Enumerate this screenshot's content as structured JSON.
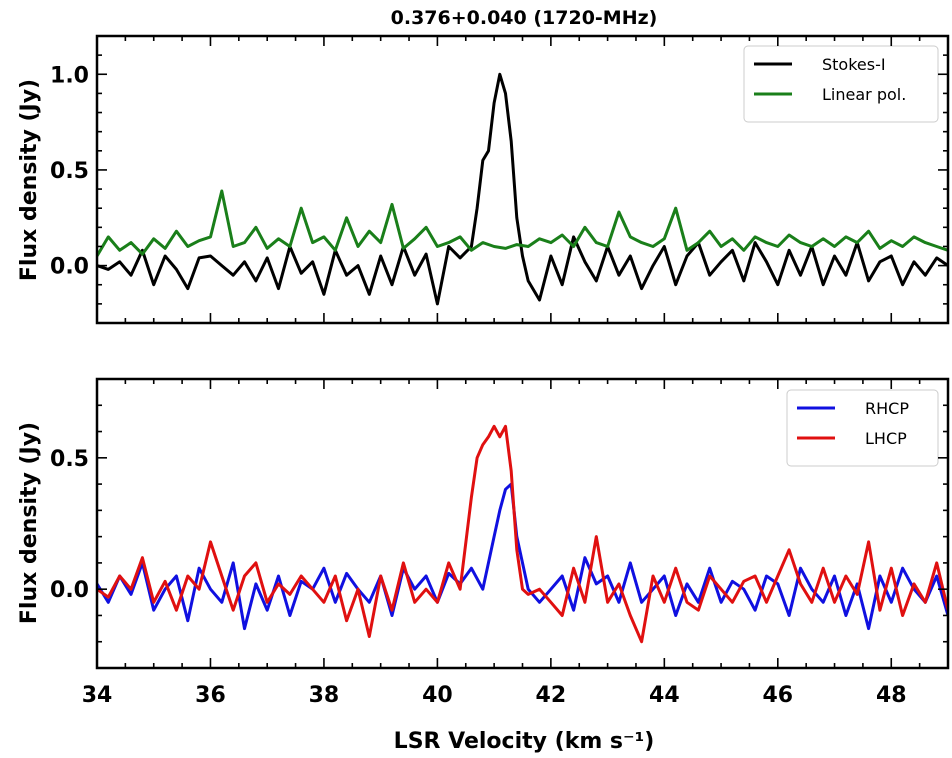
{
  "chart_data": [
    {
      "type": "line",
      "title": "0.376+0.040 (1720-MHz)",
      "xlabel": "",
      "ylabel": "Flux density (Jy)",
      "xlim": [
        34,
        49
      ],
      "ylim": [
        -0.3,
        1.2
      ],
      "yticks": [
        0.0,
        0.5,
        1.0
      ],
      "ytick_labels": [
        "0.0",
        "0.5",
        "1.0"
      ],
      "legend_position": "top-right",
      "series": [
        {
          "name": "Stokes-I",
          "color": "#000000",
          "x": [
            34.0,
            34.2,
            34.4,
            34.6,
            34.8,
            35.0,
            35.2,
            35.4,
            35.6,
            35.8,
            36.0,
            36.2,
            36.4,
            36.6,
            36.8,
            37.0,
            37.2,
            37.4,
            37.6,
            37.8,
            38.0,
            38.2,
            38.4,
            38.6,
            38.8,
            39.0,
            39.2,
            39.4,
            39.6,
            39.8,
            40.0,
            40.2,
            40.4,
            40.6,
            40.7,
            40.8,
            40.9,
            41.0,
            41.1,
            41.2,
            41.3,
            41.4,
            41.5,
            41.6,
            41.8,
            42.0,
            42.2,
            42.4,
            42.6,
            42.8,
            43.0,
            43.2,
            43.4,
            43.6,
            43.8,
            44.0,
            44.2,
            44.4,
            44.6,
            44.8,
            45.0,
            45.2,
            45.4,
            45.6,
            45.8,
            46.0,
            46.2,
            46.4,
            46.6,
            46.8,
            47.0,
            47.2,
            47.4,
            47.6,
            47.8,
            48.0,
            48.2,
            48.4,
            48.6,
            48.8,
            49.0
          ],
          "y": [
            0.0,
            -0.02,
            0.02,
            -0.05,
            0.08,
            -0.1,
            0.05,
            -0.02,
            -0.12,
            0.04,
            0.05,
            0.0,
            -0.05,
            0.02,
            -0.08,
            0.04,
            -0.12,
            0.1,
            -0.04,
            0.02,
            -0.15,
            0.08,
            -0.05,
            0.0,
            -0.15,
            0.05,
            -0.1,
            0.1,
            -0.05,
            0.06,
            -0.2,
            0.1,
            0.04,
            0.1,
            0.3,
            0.55,
            0.6,
            0.85,
            1.0,
            0.9,
            0.65,
            0.25,
            0.05,
            -0.08,
            -0.18,
            0.05,
            -0.1,
            0.15,
            0.02,
            -0.08,
            0.1,
            -0.05,
            0.05,
            -0.12,
            0.0,
            0.1,
            -0.1,
            0.05,
            0.12,
            -0.05,
            0.02,
            0.08,
            -0.08,
            0.12,
            0.02,
            -0.1,
            0.08,
            -0.05,
            0.1,
            -0.1,
            0.05,
            -0.05,
            0.12,
            -0.08,
            0.02,
            0.05,
            -0.1,
            0.02,
            -0.05,
            0.04,
            0.0
          ]
        },
        {
          "name": "Linear pol.",
          "color": "#1a7f1a",
          "x": [
            34.0,
            34.2,
            34.4,
            34.6,
            34.8,
            35.0,
            35.2,
            35.4,
            35.6,
            35.8,
            36.0,
            36.2,
            36.4,
            36.6,
            36.8,
            37.0,
            37.2,
            37.4,
            37.6,
            37.8,
            38.0,
            38.2,
            38.4,
            38.6,
            38.8,
            39.0,
            39.2,
            39.4,
            39.6,
            39.8,
            40.0,
            40.2,
            40.4,
            40.6,
            40.8,
            41.0,
            41.2,
            41.4,
            41.6,
            41.8,
            42.0,
            42.2,
            42.4,
            42.6,
            42.8,
            43.0,
            43.2,
            43.4,
            43.6,
            43.8,
            44.0,
            44.2,
            44.4,
            44.6,
            44.8,
            45.0,
            45.2,
            45.4,
            45.6,
            45.8,
            46.0,
            46.2,
            46.4,
            46.6,
            46.8,
            47.0,
            47.2,
            47.4,
            47.6,
            47.8,
            48.0,
            48.2,
            48.4,
            48.6,
            48.8,
            49.0
          ],
          "y": [
            0.05,
            0.15,
            0.08,
            0.12,
            0.06,
            0.14,
            0.09,
            0.18,
            0.1,
            0.13,
            0.15,
            0.39,
            0.1,
            0.12,
            0.2,
            0.09,
            0.14,
            0.1,
            0.3,
            0.12,
            0.15,
            0.08,
            0.25,
            0.1,
            0.18,
            0.12,
            0.32,
            0.09,
            0.14,
            0.2,
            0.1,
            0.12,
            0.15,
            0.08,
            0.12,
            0.1,
            0.09,
            0.11,
            0.1,
            0.14,
            0.12,
            0.16,
            0.1,
            0.2,
            0.12,
            0.1,
            0.28,
            0.15,
            0.12,
            0.1,
            0.14,
            0.3,
            0.08,
            0.12,
            0.18,
            0.1,
            0.14,
            0.08,
            0.15,
            0.12,
            0.1,
            0.16,
            0.12,
            0.1,
            0.14,
            0.1,
            0.15,
            0.12,
            0.18,
            0.09,
            0.13,
            0.1,
            0.15,
            0.12,
            0.1,
            0.08
          ]
        }
      ]
    },
    {
      "type": "line",
      "title": "",
      "xlabel": "LSR Velocity (km s⁻¹)",
      "ylabel": "Flux density (Jy)",
      "xlim": [
        34,
        49
      ],
      "ylim": [
        -0.3,
        0.8
      ],
      "xticks": [
        34,
        36,
        38,
        40,
        42,
        44,
        46,
        48
      ],
      "xtick_labels": [
        "34",
        "36",
        "38",
        "40",
        "42",
        "44",
        "46",
        "48"
      ],
      "yticks": [
        0.0,
        0.5
      ],
      "ytick_labels": [
        "0.0",
        "0.5"
      ],
      "legend_position": "top-right",
      "series": [
        {
          "name": "RHCP",
          "color": "#1010e0",
          "x": [
            34.0,
            34.2,
            34.4,
            34.6,
            34.8,
            35.0,
            35.2,
            35.4,
            35.6,
            35.8,
            36.0,
            36.2,
            36.4,
            36.6,
            36.8,
            37.0,
            37.2,
            37.4,
            37.6,
            37.8,
            38.0,
            38.2,
            38.4,
            38.6,
            38.8,
            39.0,
            39.2,
            39.4,
            39.6,
            39.8,
            40.0,
            40.2,
            40.4,
            40.6,
            40.8,
            41.0,
            41.1,
            41.2,
            41.3,
            41.4,
            41.6,
            41.8,
            42.0,
            42.2,
            42.4,
            42.6,
            42.8,
            43.0,
            43.2,
            43.4,
            43.6,
            43.8,
            44.0,
            44.2,
            44.4,
            44.6,
            44.8,
            45.0,
            45.2,
            45.4,
            45.6,
            45.8,
            46.0,
            46.2,
            46.4,
            46.6,
            46.8,
            47.0,
            47.2,
            47.4,
            47.6,
            47.8,
            48.0,
            48.2,
            48.4,
            48.6,
            48.8,
            49.0
          ],
          "y": [
            0.02,
            -0.05,
            0.05,
            -0.02,
            0.1,
            -0.08,
            0.0,
            0.05,
            -0.12,
            0.08,
            0.0,
            -0.05,
            0.1,
            -0.15,
            0.02,
            -0.08,
            0.05,
            -0.1,
            0.03,
            0.0,
            0.08,
            -0.05,
            0.06,
            0.0,
            -0.05,
            0.05,
            -0.1,
            0.08,
            0.0,
            0.05,
            -0.05,
            0.06,
            0.02,
            0.08,
            0.0,
            0.2,
            0.3,
            0.38,
            0.4,
            0.2,
            0.0,
            -0.05,
            0.0,
            0.05,
            -0.08,
            0.12,
            0.02,
            0.05,
            -0.05,
            0.1,
            -0.05,
            0.0,
            0.05,
            -0.1,
            0.02,
            -0.05,
            0.08,
            -0.05,
            0.03,
            0.0,
            -0.08,
            0.05,
            0.02,
            -0.1,
            0.08,
            0.0,
            -0.05,
            0.05,
            -0.1,
            0.02,
            -0.15,
            0.05,
            -0.05,
            0.08,
            0.0,
            -0.05,
            0.05,
            -0.1
          ]
        },
        {
          "name": "LHCP",
          "color": "#e01010",
          "x": [
            34.0,
            34.2,
            34.4,
            34.6,
            34.8,
            35.0,
            35.2,
            35.4,
            35.6,
            35.8,
            36.0,
            36.2,
            36.4,
            36.6,
            36.8,
            37.0,
            37.2,
            37.4,
            37.6,
            37.8,
            38.0,
            38.2,
            38.4,
            38.6,
            38.8,
            39.0,
            39.2,
            39.4,
            39.6,
            39.8,
            40.0,
            40.2,
            40.4,
            40.6,
            40.7,
            40.8,
            40.9,
            41.0,
            41.1,
            41.2,
            41.3,
            41.4,
            41.5,
            41.6,
            41.8,
            42.0,
            42.2,
            42.4,
            42.6,
            42.8,
            43.0,
            43.2,
            43.4,
            43.6,
            43.8,
            44.0,
            44.2,
            44.4,
            44.6,
            44.8,
            45.0,
            45.2,
            45.4,
            45.6,
            45.8,
            46.0,
            46.2,
            46.4,
            46.6,
            46.8,
            47.0,
            47.2,
            47.4,
            47.6,
            47.8,
            48.0,
            48.2,
            48.4,
            48.6,
            48.8,
            49.0
          ],
          "y": [
            0.0,
            -0.03,
            0.05,
            0.0,
            0.12,
            -0.05,
            0.03,
            -0.08,
            0.05,
            0.0,
            0.18,
            0.05,
            -0.08,
            0.05,
            0.1,
            -0.05,
            0.02,
            -0.02,
            0.05,
            0.0,
            -0.05,
            0.05,
            -0.12,
            0.0,
            -0.18,
            0.05,
            -0.08,
            0.1,
            -0.05,
            0.0,
            -0.05,
            0.1,
            0.0,
            0.35,
            0.5,
            0.55,
            0.58,
            0.62,
            0.58,
            0.62,
            0.45,
            0.15,
            0.0,
            -0.02,
            0.0,
            -0.05,
            -0.1,
            0.08,
            -0.05,
            0.2,
            -0.05,
            0.02,
            -0.1,
            -0.2,
            0.05,
            -0.05,
            0.08,
            -0.05,
            -0.08,
            0.05,
            0.0,
            -0.05,
            0.03,
            0.05,
            -0.05,
            0.05,
            0.15,
            0.02,
            -0.05,
            0.08,
            -0.05,
            0.05,
            -0.02,
            0.18,
            -0.08,
            0.08,
            -0.1,
            0.02,
            -0.05,
            0.1,
            -0.08
          ]
        }
      ]
    }
  ]
}
